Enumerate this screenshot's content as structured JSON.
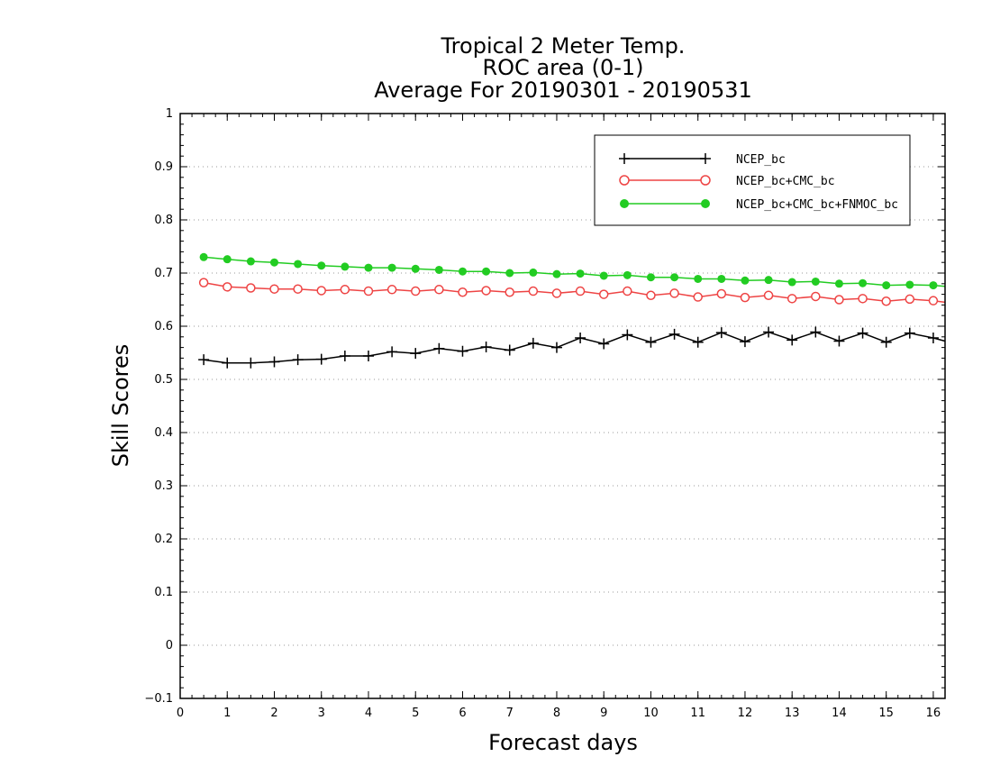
{
  "chart_data": {
    "type": "line",
    "title_lines": [
      "Tropical 2 Meter Temp.",
      "ROC area (0-1)",
      "Average For 20190301 - 20190531"
    ],
    "xlabel": "Forecast days",
    "ylabel": "Skill Scores",
    "xlim": [
      0,
      16.25
    ],
    "ylim": [
      -0.1,
      1
    ],
    "x_ticks": [
      "0",
      "1",
      "2",
      "3",
      "4",
      "5",
      "6",
      "7",
      "8",
      "9",
      "10",
      "11",
      "12",
      "13",
      "14",
      "15",
      "16"
    ],
    "y_ticks": [
      "−0.1",
      "0",
      "0.1",
      "0.2",
      "0.3",
      "0.4",
      "0.5",
      "0.6",
      "0.7",
      "0.8",
      "0.9",
      "1"
    ],
    "grid": "horizontal dotted",
    "legend_position": "top-right",
    "x": [
      0.5,
      1,
      1.5,
      2,
      2.5,
      3,
      3.5,
      4,
      4.5,
      5,
      5.5,
      6,
      6.5,
      7,
      7.5,
      8,
      8.5,
      9,
      9.5,
      10,
      10.5,
      11,
      11.5,
      12,
      12.5,
      13,
      13.5,
      14,
      14.5,
      15,
      15.5,
      16,
      16.25
    ],
    "series": [
      {
        "name": "NCEP_bc",
        "color": "#000000",
        "marker": "plus",
        "values": [
          0.537,
          0.531,
          0.531,
          0.533,
          0.537,
          0.538,
          0.544,
          0.544,
          0.552,
          0.549,
          0.558,
          0.553,
          0.561,
          0.555,
          0.568,
          0.56,
          0.578,
          0.567,
          0.584,
          0.57,
          0.585,
          0.57,
          0.588,
          0.571,
          0.589,
          0.574,
          0.589,
          0.572,
          0.587,
          0.57,
          0.587,
          0.578,
          0.572
        ]
      },
      {
        "name": "NCEP_bc+CMC_bc",
        "color": "#ee4444",
        "marker": "open-circle",
        "values": [
          0.682,
          0.674,
          0.672,
          0.67,
          0.67,
          0.667,
          0.669,
          0.666,
          0.669,
          0.666,
          0.669,
          0.664,
          0.667,
          0.664,
          0.666,
          0.662,
          0.666,
          0.66,
          0.666,
          0.658,
          0.662,
          0.655,
          0.661,
          0.654,
          0.658,
          0.652,
          0.656,
          0.65,
          0.652,
          0.647,
          0.651,
          0.648,
          0.645
        ]
      },
      {
        "name": "NCEP_bc+CMC_bc+FNMOC_bc",
        "color": "#22cc22",
        "marker": "filled-circle",
        "values": [
          0.73,
          0.726,
          0.722,
          0.72,
          0.717,
          0.714,
          0.712,
          0.71,
          0.71,
          0.708,
          0.706,
          0.703,
          0.703,
          0.7,
          0.701,
          0.698,
          0.699,
          0.695,
          0.696,
          0.692,
          0.692,
          0.689,
          0.689,
          0.686,
          0.687,
          0.683,
          0.684,
          0.68,
          0.681,
          0.677,
          0.678,
          0.677,
          0.675
        ]
      }
    ]
  }
}
